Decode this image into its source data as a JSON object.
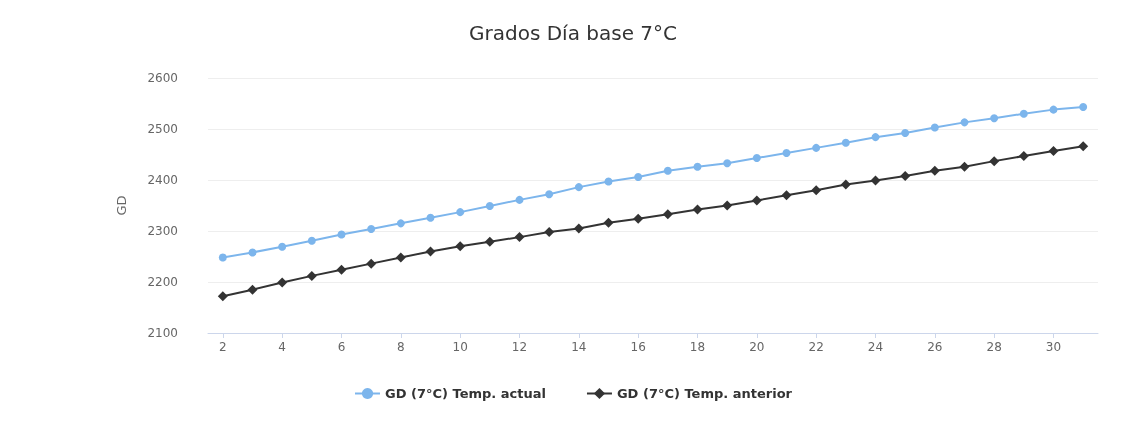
{
  "chart_data": {
    "type": "line",
    "title": "Grados Día base 7°C",
    "ylabel": "GD",
    "x": [
      2,
      3,
      4,
      5,
      6,
      7,
      8,
      9,
      10,
      11,
      12,
      13,
      14,
      15,
      16,
      17,
      18,
      19,
      20,
      21,
      22,
      23,
      24,
      25,
      26,
      27,
      28,
      29,
      30,
      31
    ],
    "xlim": [
      1.5,
      31.5
    ],
    "xticks": [
      2,
      4,
      6,
      8,
      10,
      12,
      14,
      16,
      18,
      20,
      22,
      24,
      26,
      28,
      30
    ],
    "ylim": [
      2100,
      2600
    ],
    "yticks": [
      2100,
      2200,
      2300,
      2400,
      2500,
      2600
    ],
    "grid": "y",
    "legend": "bottom",
    "series": [
      {
        "name": "GD (7°C) Temp. actual",
        "color": "#7cb5ec",
        "marker": "circle",
        "values": [
          2248,
          2258,
          2269,
          2281,
          2293,
          2304,
          2315,
          2326,
          2337,
          2349,
          2361,
          2372,
          2386,
          2397,
          2406,
          2418,
          2426,
          2433,
          2443,
          2453,
          2463,
          2473,
          2484,
          2492,
          2503,
          2513,
          2521,
          2530,
          2538,
          2543
        ]
      },
      {
        "name": "GD (7°C) Temp. anterior",
        "color": "#333333",
        "marker": "diamond",
        "values": [
          2172,
          2185,
          2199,
          2212,
          2224,
          2236,
          2248,
          2260,
          2270,
          2279,
          2288,
          2298,
          2305,
          2316,
          2324,
          2333,
          2342,
          2350,
          2360,
          2370,
          2380,
          2391,
          2399,
          2408,
          2418,
          2426,
          2437,
          2447,
          2457,
          2466
        ]
      }
    ]
  }
}
